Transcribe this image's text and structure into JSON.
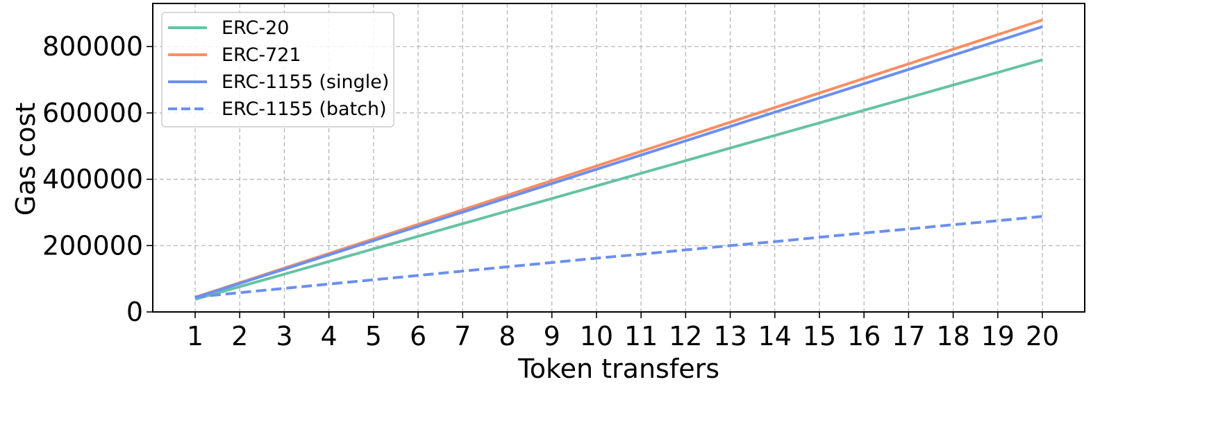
{
  "chart_data": {
    "type": "line",
    "xlabel": "Token transfers",
    "ylabel": "Gas cost",
    "x": [
      1,
      2,
      3,
      4,
      5,
      6,
      7,
      8,
      9,
      10,
      11,
      12,
      13,
      14,
      15,
      16,
      17,
      18,
      19,
      20
    ],
    "xlim": [
      0.05,
      20.95
    ],
    "ylim": [
      0,
      930000
    ],
    "yticks": [
      0,
      200000,
      400000,
      600000,
      800000
    ],
    "grid": true,
    "legend_position": "top-left",
    "series": [
      {
        "name": "ERC-20",
        "color": "#66c2a5",
        "dash": "solid",
        "values": [
          38000,
          76000,
          114000,
          152000,
          190000,
          228000,
          266000,
          304000,
          342000,
          380000,
          418000,
          456000,
          494000,
          532000,
          570000,
          608000,
          646000,
          684000,
          722000,
          760000
        ]
      },
      {
        "name": "ERC-721",
        "color": "#fc8d62",
        "dash": "solid",
        "values": [
          44000,
          88000,
          132000,
          176000,
          220000,
          264000,
          308000,
          352000,
          396000,
          440000,
          484000,
          528000,
          572000,
          616000,
          660000,
          704000,
          748000,
          792000,
          836000,
          880000
        ]
      },
      {
        "name": "ERC-1155 (single)",
        "color": "#6b8ff0",
        "dash": "solid",
        "values": [
          43000,
          86000,
          129000,
          172000,
          215000,
          258000,
          301000,
          344000,
          387000,
          430000,
          473000,
          516000,
          559000,
          602000,
          645000,
          688000,
          731000,
          774000,
          817000,
          860000
        ]
      },
      {
        "name": "ERC-1155 (batch)",
        "color": "#6b8ff0",
        "dash": "dashed",
        "values": [
          45000,
          58000,
          71000,
          84000,
          97000,
          110000,
          123000,
          136000,
          149000,
          162000,
          174000,
          187000,
          200000,
          212000,
          225000,
          238000,
          250000,
          263000,
          275000,
          288000
        ]
      }
    ]
  }
}
